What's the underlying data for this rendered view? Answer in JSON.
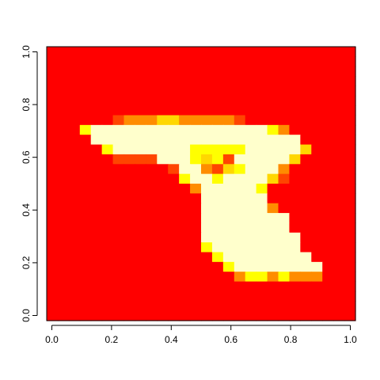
{
  "chart_data": {
    "type": "heatmap",
    "title": "",
    "xlabel": "",
    "ylabel": "",
    "xlim": [
      0,
      1
    ],
    "ylim": [
      0,
      1
    ],
    "x_ticks": [
      "0.0",
      "0.2",
      "0.4",
      "0.6",
      "0.8",
      "1.0"
    ],
    "y_ticks": [
      "0.0",
      "0.2",
      "0.4",
      "0.6",
      "0.8",
      "1.0"
    ],
    "x_tick_values": [
      0,
      0.2,
      0.4,
      0.6,
      0.8,
      1.0
    ],
    "y_tick_values": [
      0,
      0.2,
      0.4,
      0.6,
      0.8,
      1.0
    ],
    "grid": false,
    "legend": "none",
    "colormap": "heat",
    "palette": [
      "#FF0000",
      "#FF4500",
      "#FF8C00",
      "#FFD700",
      "#FFFF00",
      "#FFFFCC"
    ],
    "grid_size": [
      28,
      28
    ],
    "value_range": [
      0,
      5
    ],
    "matrix_rows_top_to_bottom": [
      "0000000000000000000000000000",
      "0000000000000000000000000000",
      "0000000000000000000000000000",
      "0000000000000000000000000000",
      "0000000000000000000000000000",
      "0000000000000000000000000000",
      "0000000000000000000000000000",
      "0000001222332222210000000000",
      "0004555555555555555542000000",
      "0000555555555555555555500000",
      "0000045555555444445555530000",
      "0000001111555434155555300000",
      "0000000000015521345552000000",
      "0000000000004554555531000000",
      "0000000000000255555400000000",
      "0000000000000055555500000000",
      "0000000000000055555520000000",
      "0000000000000055555555000000",
      "0000000000000055555555000000",
      "0000000000000055555555500000",
      "0000000000000045555555500000",
      "0000000000000004555555550000",
      "0000000000000000455555555000",
      "0000000000000000024424222000",
      "0000000000000000000000000000",
      "0000000000000000000000000000",
      "0000000000000000000000000000",
      "0000000000000000000000000000"
    ]
  }
}
